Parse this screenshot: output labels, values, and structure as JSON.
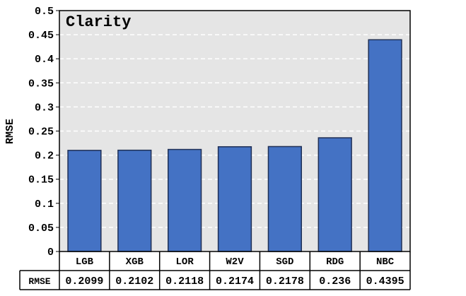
{
  "chart_data": {
    "type": "bar",
    "title": "Clarity",
    "xlabel": "",
    "ylabel": "RMSE",
    "ylim": [
      0,
      0.5
    ],
    "yticks": [
      "0",
      "0.05",
      "0.1",
      "0.15",
      "0.2",
      "0.25",
      "0.3",
      "0.35",
      "0.4",
      "0.45",
      "0.5"
    ],
    "categories": [
      "LGB",
      "XGB",
      "LOR",
      "W2V",
      "SGD",
      "RDG",
      "NBC"
    ],
    "values": [
      0.2099,
      0.2102,
      0.2118,
      0.2174,
      0.2178,
      0.236,
      0.4395
    ],
    "table": {
      "row_label": "RMSE",
      "cells": [
        "0.2099",
        "0.2102",
        "0.2118",
        "0.2174",
        "0.2178",
        "0.236",
        "0.4395"
      ]
    },
    "grid": true,
    "bar_color": "#4472c4",
    "plot_background": "#e5e5e5"
  }
}
